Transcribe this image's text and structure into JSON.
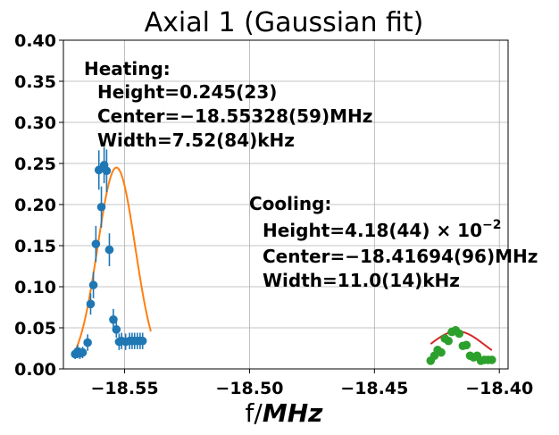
{
  "chart_data": {
    "type": "scatter",
    "title": "Axial 1 (Gaussian fit)",
    "xlabel_prefix": "f/",
    "xlabel_unit": "MHz",
    "ylabel": "",
    "xlim": [
      -18.5745,
      -18.3965
    ],
    "ylim": [
      0,
      0.4
    ],
    "grid": true,
    "x_ticks": [
      -18.55,
      -18.5,
      -18.45,
      -18.4
    ],
    "x_tick_labels": [
      "−18.55",
      "−18.50",
      "−18.45",
      "−18.40"
    ],
    "y_ticks": [
      0,
      0.05,
      0.1,
      0.15,
      0.2,
      0.25,
      0.3,
      0.35,
      0.4
    ],
    "y_tick_labels": [
      "0.00",
      "0.05",
      "0.10",
      "0.15",
      "0.20",
      "0.25",
      "0.30",
      "0.35",
      "0.40"
    ],
    "series": [
      {
        "label": "heating",
        "color": "#1f77b4",
        "x": [
          -18.5698,
          -18.5688,
          -18.5679,
          -18.5668,
          -18.5648,
          -18.5636,
          -18.5625,
          -18.5615,
          -18.5603,
          -18.5593,
          -18.5582,
          -18.5572,
          -18.5561,
          -18.5545,
          -18.5533,
          -18.5522,
          -18.5512,
          -18.5496,
          -18.548,
          -18.547,
          -18.546,
          -18.5449,
          -18.5438,
          -18.5428
        ],
        "y": [
          0.018,
          0.021,
          0.019,
          0.02,
          0.032,
          0.079,
          0.102,
          0.152,
          0.242,
          0.197,
          0.248,
          0.241,
          0.145,
          0.06,
          0.048,
          0.033,
          0.034,
          0.033,
          0.034,
          0.034,
          0.034,
          0.034,
          0.034,
          0.034
        ],
        "yerr": [
          0.006,
          0.008,
          0.007,
          0.007,
          0.01,
          0.013,
          0.016,
          0.022,
          0.024,
          0.025,
          0.022,
          0.026,
          0.02,
          0.013,
          0.01,
          0.01,
          0.01,
          0.01,
          0.01,
          0.01,
          0.01,
          0.01,
          0.01,
          0.01
        ]
      },
      {
        "label": "cooling",
        "color": "#2ca02c",
        "x": [
          -18.4275,
          -18.426,
          -18.4247,
          -18.4233,
          -18.4218,
          -18.4204,
          -18.419,
          -18.4175,
          -18.4161,
          -18.4146,
          -18.4132,
          -18.4117,
          -18.4103,
          -18.4089,
          -18.4074,
          -18.406,
          -18.4045,
          -18.403
        ],
        "y": [
          0.01,
          0.016,
          0.023,
          0.02,
          0.037,
          0.034,
          0.045,
          0.047,
          0.043,
          0.028,
          0.029,
          0.016,
          0.014,
          0.016,
          0.01,
          0.011,
          0.011,
          0.011
        ]
      }
    ],
    "fits": [
      {
        "label": "heating-fit",
        "color": "#ff7f0e",
        "height": 0.245,
        "center": -18.55328,
        "width_khz": 7.52,
        "offset": 0.0,
        "xrange": [
          -18.57,
          -18.5395
        ]
      },
      {
        "label": "cooling-fit",
        "color": "#d62728",
        "height": 0.0418,
        "center": -18.41694,
        "width_khz": 11.0,
        "offset": 0.004,
        "xrange": [
          -18.4275,
          -18.403
        ]
      }
    ],
    "annotations": {
      "heating": [
        "Heating:",
        "Height=0.245(23)",
        "Center=−18.55328(59)MHz",
        "Width=7.52(84)kHz"
      ],
      "cooling_header": "Cooling:",
      "cooling_height_main": "Height=4.18(44) × 10",
      "cooling_height_exp": "−2",
      "cooling_center": "Center=−18.41694(96)MHz",
      "cooling_width": "Width=11.0(14)kHz"
    }
  }
}
